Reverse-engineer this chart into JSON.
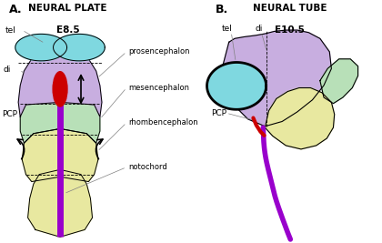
{
  "fig_width": 4.2,
  "fig_height": 2.67,
  "dpi": 100,
  "bg_color": "#ffffff",
  "panel_A": {
    "title_letter": "A.",
    "title_main": "NEURAL PLATE",
    "title_sub": "E8.5",
    "colors": {
      "tel_cyan": "#7fd8e0",
      "prosencephalon_purple": "#c8aee0",
      "mesencephalon_green": "#b8e0b8",
      "rhombencephalon_yellow": "#e8e8a0",
      "notochord_purple": "#9900cc",
      "oval_red": "#cc0000"
    }
  },
  "panel_B": {
    "title_letter": "B.",
    "title_main": "NEURAL TUBE",
    "title_sub": "E10.5",
    "colors": {
      "tel_cyan": "#7fd8e0",
      "di_purple": "#c8aee0",
      "mes_green": "#b8e0b8",
      "rhombo_yellow": "#e8e8a0",
      "notochord_purple": "#9900cc",
      "pcp_red": "#cc0000"
    }
  }
}
